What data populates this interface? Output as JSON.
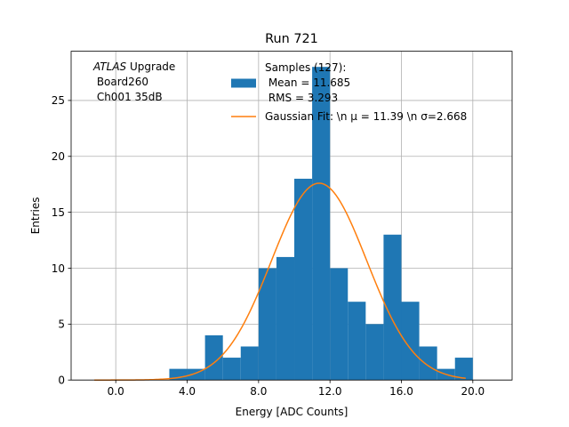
{
  "chart_data": {
    "type": "bar",
    "title": "Run 721",
    "xlabel": "Energy [ADC Counts]",
    "ylabel": "Entries",
    "xlim": [
      -2.5,
      22.2
    ],
    "ylim": [
      0,
      29.4
    ],
    "grid": true,
    "x_ticks": [
      0,
      4,
      8,
      12,
      16,
      20
    ],
    "x_tick_labels": [
      "0.0",
      "4.0",
      "8.0",
      "12.0",
      "16.0",
      "20.0"
    ],
    "y_ticks": [
      0,
      5,
      10,
      15,
      20,
      25
    ],
    "y_tick_labels": [
      "0",
      "5",
      "10",
      "15",
      "20",
      "25"
    ],
    "bin_edges": [
      3,
      4,
      5,
      6,
      7,
      8,
      9,
      10,
      11,
      12,
      13,
      14,
      15,
      16,
      17,
      18,
      19,
      20
    ],
    "values": [
      1,
      1,
      4,
      2,
      3,
      10,
      11,
      18,
      28,
      10,
      7,
      5,
      13,
      7,
      3,
      1,
      2
    ],
    "histogram_color": "#1f77b4",
    "fit": {
      "type": "gaussian",
      "amplitude": 17.6,
      "mu": 11.39,
      "sigma": 2.668,
      "x_range": [
        -1.2,
        19.6
      ],
      "color": "#ff7f0e"
    },
    "annotation": {
      "italic": "ATLAS",
      "line1_rest": " Upgrade",
      "line2": " Board260",
      "line3": " Ch001 35dB"
    },
    "legend": {
      "position": "top-right",
      "entries": [
        {
          "kind": "patch",
          "lines": [
            "Samples (127):",
            " Mean = 11.685",
            " RMS = 3.293"
          ]
        },
        {
          "kind": "line",
          "lines": [
            "Gaussian Fit: \\n μ = 11.39 \\n σ=2.668"
          ]
        }
      ]
    }
  }
}
